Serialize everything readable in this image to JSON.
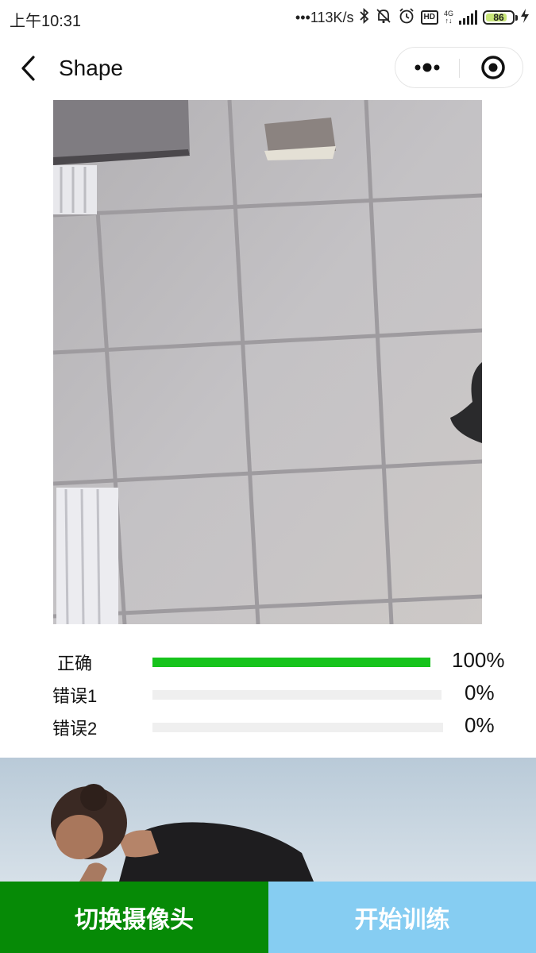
{
  "status_bar": {
    "time": "上午10:31",
    "net_speed": "113K/s",
    "network": "4G",
    "battery": "86"
  },
  "nav": {
    "title": "Shape"
  },
  "results": [
    {
      "label": "正确",
      "value": "100%",
      "fraction": 1.0
    },
    {
      "label": "错误1",
      "value": "0%",
      "fraction": 0.0
    },
    {
      "label": "错误2",
      "value": "0%",
      "fraction": 0.0
    }
  ],
  "buttons": {
    "switch_camera": "切换摄像头",
    "start_training": "开始训练"
  },
  "colors": {
    "progress_green": "#17c31c",
    "switch_button": "#068a06",
    "start_button": "#86cdf2"
  }
}
